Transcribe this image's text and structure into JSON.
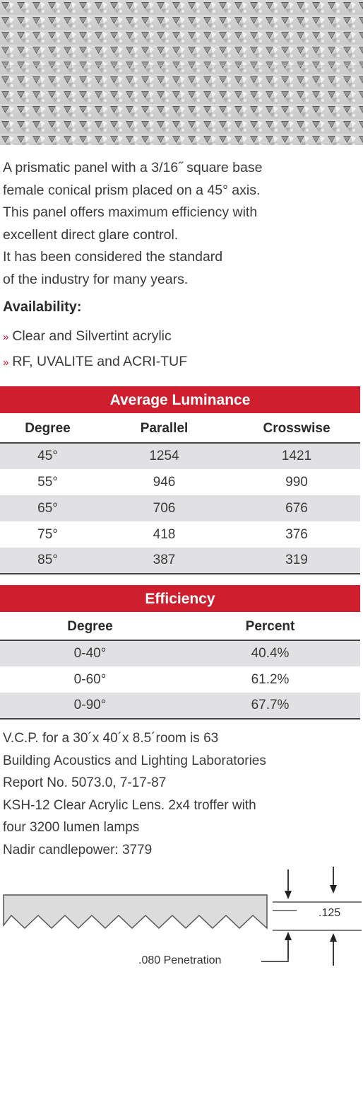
{
  "description_lines": [
    "A prismatic panel with a 3/16˝ square base",
    "female conical prism placed on a 45° axis.",
    "This panel offers maximum efficiency with",
    "excellent direct glare control.",
    "It has been considered the standard",
    "of the industry for many years."
  ],
  "availability": {
    "heading": "Availability:",
    "bullet": "»",
    "items": [
      "Clear and Silvertint acrylic",
      "RF, UVALITE and ACRI-TUF"
    ]
  },
  "luminance": {
    "title": "Average Luminance",
    "headers": [
      "Degree",
      "Parallel",
      "Crosswise"
    ],
    "rows": [
      [
        "45°",
        "1254",
        "1421"
      ],
      [
        "55°",
        "946",
        "990"
      ],
      [
        "65°",
        "706",
        "676"
      ],
      [
        "75°",
        "418",
        "376"
      ],
      [
        "85°",
        "387",
        "319"
      ]
    ]
  },
  "efficiency": {
    "title": "Efficiency",
    "headers": [
      "Degree",
      "Percent"
    ],
    "rows": [
      [
        "0-40°",
        "40.4%"
      ],
      [
        "0-60°",
        "61.2%"
      ],
      [
        "0-90°",
        "67.7%"
      ]
    ]
  },
  "notes": [
    "V.C.P. for a 30´x 40´x 8.5´room is 63",
    "Building Acoustics and Lighting Laboratories",
    "Report No. 5073.0, 7-17-87",
    "KSH-12 Clear Acrylic Lens. 2x4 troffer with",
    "four 3200 lumen lamps",
    "Nadir candlepower: 3779"
  ],
  "diagram": {
    "thickness_label": ".125",
    "penetration_label": ".080 Penetration"
  },
  "colors": {
    "accent": "#cf1f2e",
    "row_shade": "#e1e1e3",
    "text": "#3a3a3a"
  }
}
